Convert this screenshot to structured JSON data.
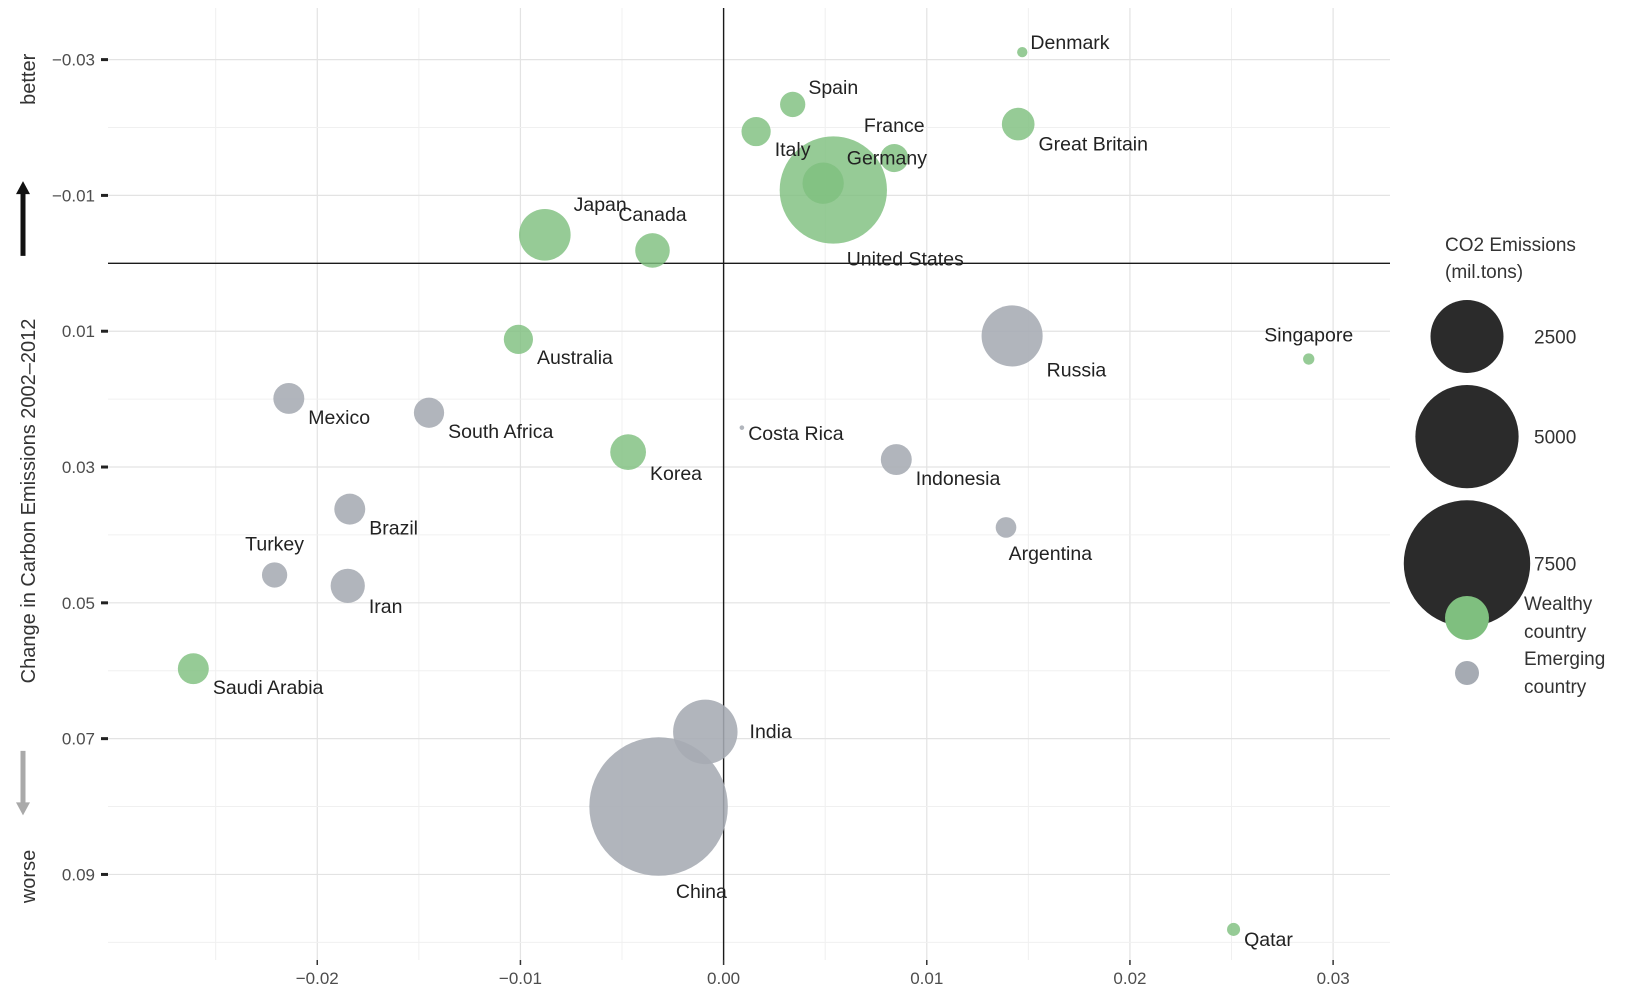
{
  "chart_data": {
    "type": "scatter",
    "ylabel": "Change in Carbon Emissions 2002–2012",
    "y_direction_labels": {
      "up": "better",
      "down": "worse"
    },
    "x_ticks": [
      -0.02,
      -0.01,
      0.0,
      0.01,
      0.02,
      0.03
    ],
    "x_tick_labels": [
      "−0.02",
      "−0.01",
      "0.00",
      "0.01",
      "0.02",
      "0.03"
    ],
    "y_ticks": [
      -0.03,
      -0.01,
      0.01,
      0.03,
      0.05,
      0.07,
      0.09
    ],
    "y_tick_labels": [
      "−0.03",
      "−0.01",
      "0.01",
      "0.03",
      "0.05",
      "0.07",
      "0.09"
    ],
    "xlim": [
      -0.0303,
      0.0328
    ],
    "ylim": [
      -0.0376,
      0.1026
    ],
    "y_reversed": true,
    "grid": true,
    "colors": {
      "wealthy": "#7fbf7f",
      "emerging": "#a6abb3",
      "legend_size": "#2b2b2b",
      "arrow_up": "#111111",
      "arrow_down": "#a9a9a9"
    },
    "size_legend": {
      "title_lines": [
        "CO2 Emissions",
        "(mil.tons)"
      ],
      "values": [
        2500,
        5000,
        7500
      ]
    },
    "color_legend": [
      {
        "key": "wealthy",
        "lines": [
          "Wealthy",
          "country"
        ]
      },
      {
        "key": "emerging",
        "lines": [
          "Emerging",
          "country"
        ]
      }
    ],
    "points": [
      {
        "name": "Denmark",
        "x": 0.0147,
        "y": -0.0311,
        "co2": 50,
        "group": "wealthy",
        "anchor": "right-up"
      },
      {
        "name": "Spain",
        "x": 0.0034,
        "y": -0.0234,
        "co2": 300,
        "group": "wealthy",
        "anchor": "right-up"
      },
      {
        "name": "Italy",
        "x": 0.0016,
        "y": -0.0194,
        "co2": 400,
        "group": "wealthy",
        "anchor": "right-down"
      },
      {
        "name": "Great Britain",
        "x": 0.0145,
        "y": -0.0205,
        "co2": 500,
        "group": "wealthy",
        "anchor": "right-down"
      },
      {
        "name": "France",
        "x": 0.0084,
        "y": -0.0155,
        "co2": 370,
        "group": "wealthy",
        "anchor": "center-up"
      },
      {
        "name": "Germany",
        "x": 0.0049,
        "y": -0.0118,
        "co2": 800,
        "group": "wealthy",
        "anchor": "right-up"
      },
      {
        "name": "United States",
        "x": 0.0054,
        "y": -0.0108,
        "co2": 5400,
        "group": "wealthy",
        "anchor": "right-below"
      },
      {
        "name": "Japan",
        "x": -0.0088,
        "y": -0.0042,
        "co2": 1250,
        "group": "wealthy",
        "anchor": "right-up"
      },
      {
        "name": "Canada",
        "x": -0.0035,
        "y": -0.0019,
        "co2": 560,
        "group": "wealthy",
        "anchor": "center-up"
      },
      {
        "name": "Australia",
        "x": -0.0101,
        "y": 0.0112,
        "co2": 400,
        "group": "wealthy",
        "anchor": "right-down"
      },
      {
        "name": "Russia",
        "x": 0.0142,
        "y": 0.0107,
        "co2": 1750,
        "group": "emerging",
        "anchor": "right-down"
      },
      {
        "name": "Singapore",
        "x": 0.0288,
        "y": 0.0141,
        "co2": 60,
        "group": "wealthy",
        "anchor": "center-up"
      },
      {
        "name": "Mexico",
        "x": -0.0214,
        "y": 0.0199,
        "co2": 450,
        "group": "emerging",
        "anchor": "right-down"
      },
      {
        "name": "South Africa",
        "x": -0.0145,
        "y": 0.022,
        "co2": 430,
        "group": "emerging",
        "anchor": "right-down"
      },
      {
        "name": "Costa Rica",
        "x": 0.0009,
        "y": 0.0242,
        "co2": 10,
        "group": "emerging",
        "anchor": "right-down"
      },
      {
        "name": "Korea",
        "x": -0.0047,
        "y": 0.0278,
        "co2": 600,
        "group": "wealthy",
        "anchor": "right-down"
      },
      {
        "name": "Indonesia",
        "x": 0.0085,
        "y": 0.0289,
        "co2": 450,
        "group": "emerging",
        "anchor": "right-down"
      },
      {
        "name": "Brazil",
        "x": -0.0184,
        "y": 0.0362,
        "co2": 450,
        "group": "emerging",
        "anchor": "right-down"
      },
      {
        "name": "Argentina",
        "x": 0.0139,
        "y": 0.0389,
        "co2": 200,
        "group": "emerging",
        "anchor": "right-below"
      },
      {
        "name": "Turkey",
        "x": -0.0221,
        "y": 0.0459,
        "co2": 300,
        "group": "emerging",
        "anchor": "center-up"
      },
      {
        "name": "Iran",
        "x": -0.0185,
        "y": 0.0475,
        "co2": 550,
        "group": "emerging",
        "anchor": "right-down"
      },
      {
        "name": "Saudi Arabia",
        "x": -0.0261,
        "y": 0.0597,
        "co2": 450,
        "group": "wealthy",
        "anchor": "right-down"
      },
      {
        "name": "India",
        "x": -0.0009,
        "y": 0.069,
        "co2": 1950,
        "group": "emerging",
        "anchor": "right"
      },
      {
        "name": "China",
        "x": -0.0032,
        "y": 0.08,
        "co2": 9000,
        "group": "emerging",
        "anchor": "right-below"
      },
      {
        "name": "Qatar",
        "x": 0.0251,
        "y": 0.0981,
        "co2": 80,
        "group": "wealthy",
        "anchor": "right-down"
      }
    ]
  }
}
